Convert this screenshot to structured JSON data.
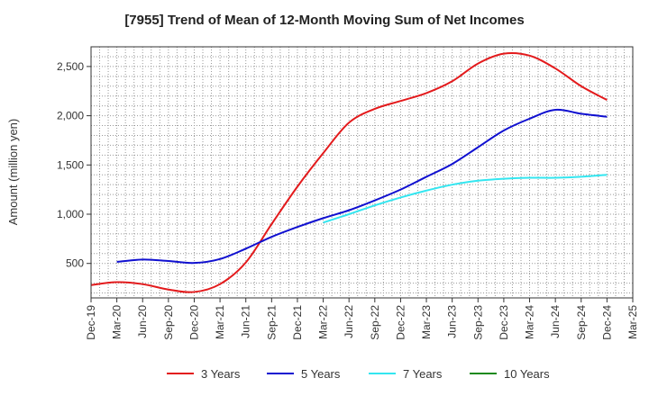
{
  "chart_data": {
    "type": "line",
    "title": "[7955]  Trend of Mean of 12-Month Moving Sum of Net Incomes",
    "xlabel": "",
    "ylabel": "Amount (million yen)",
    "ylim": [
      150,
      2700
    ],
    "yticks": [
      500,
      1000,
      1500,
      2000,
      2500
    ],
    "ytick_labels": [
      "500",
      "1,000",
      "1,500",
      "2,000",
      "2,500"
    ],
    "x_categories": [
      "Dec-19",
      "Mar-20",
      "Jun-20",
      "Sep-20",
      "Dec-20",
      "Mar-21",
      "Jun-21",
      "Sep-21",
      "Dec-21",
      "Mar-22",
      "Jun-22",
      "Sep-22",
      "Dec-22",
      "Mar-23",
      "Jun-23",
      "Sep-23",
      "Dec-23",
      "Mar-24",
      "Jun-24",
      "Sep-24",
      "Dec-24",
      "Mar-25"
    ],
    "grid": true,
    "legend_position": "bottom",
    "series": [
      {
        "name": "3 Years",
        "color": "#e31a1c",
        "values": [
          280,
          310,
          290,
          235,
          210,
          290,
          510,
          900,
          1280,
          1620,
          1930,
          2070,
          2150,
          2230,
          2350,
          2530,
          2630,
          2610,
          2480,
          2300,
          2160,
          null
        ]
      },
      {
        "name": "5 Years",
        "color": "#1010d0",
        "values": [
          null,
          515,
          540,
          525,
          505,
          545,
          650,
          770,
          870,
          960,
          1040,
          1140,
          1250,
          1380,
          1510,
          1680,
          1850,
          1970,
          2060,
          2020,
          1990,
          null
        ]
      },
      {
        "name": "7 Years",
        "color": "#33e6f0",
        "values": [
          null,
          null,
          null,
          null,
          null,
          null,
          null,
          null,
          null,
          915,
          1000,
          1090,
          1170,
          1240,
          1300,
          1340,
          1360,
          1370,
          1370,
          1380,
          1400,
          null
        ]
      },
      {
        "name": "10 Years",
        "color": "#1a8a1a",
        "values": [
          null,
          null,
          null,
          null,
          null,
          null,
          null,
          null,
          null,
          null,
          null,
          null,
          null,
          null,
          null,
          null,
          null,
          null,
          null,
          null,
          null,
          null
        ]
      }
    ]
  }
}
